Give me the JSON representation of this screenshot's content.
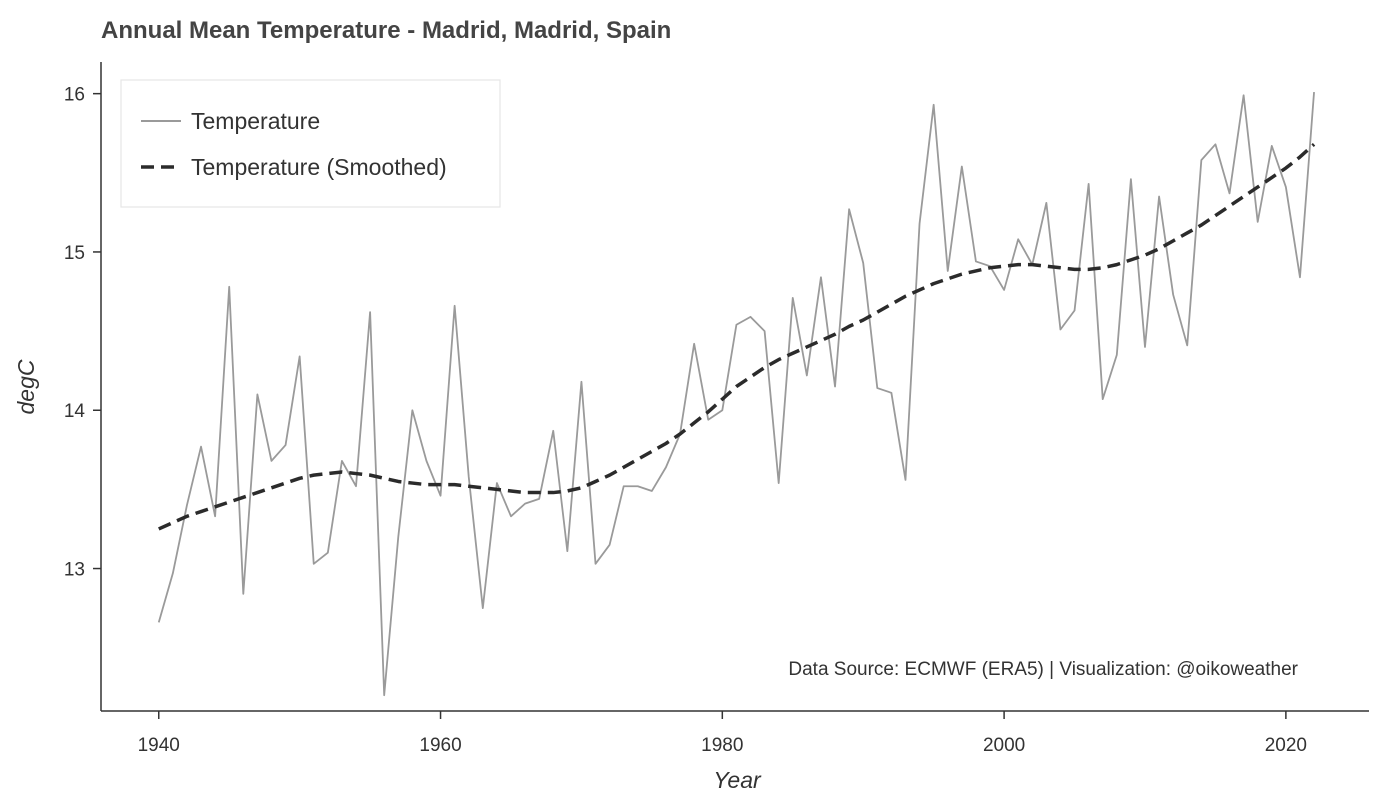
{
  "chart_data": {
    "type": "line",
    "title": "Annual Mean Temperature - Madrid, Madrid, Spain",
    "xlabel": "Year",
    "ylabel": "degC",
    "xlim": [
      1935.9,
      2025.9
    ],
    "ylim": [
      12.1,
      16.2
    ],
    "x_ticks": [
      1940,
      1960,
      1980,
      2000,
      2020
    ],
    "y_ticks": [
      13,
      14,
      15,
      16
    ],
    "x_tick_labels": [
      "1940",
      "1960",
      "1980",
      "2000",
      "2020"
    ],
    "y_tick_labels": [
      "13",
      "14",
      "15",
      "16"
    ],
    "legend_position": "top-left",
    "annotation": "Data Source: ECMWF (ERA5) | Visualization: @oikoweather",
    "colors": {
      "raw": "#9a9a9a",
      "smoothed": "#2b2b2b",
      "axis": "#333333",
      "legend_border": "#e6e6e6"
    },
    "x": [
      1940,
      1941,
      1942,
      1943,
      1944,
      1945,
      1946,
      1947,
      1948,
      1949,
      1950,
      1951,
      1952,
      1953,
      1954,
      1955,
      1956,
      1957,
      1958,
      1959,
      1960,
      1961,
      1962,
      1963,
      1964,
      1965,
      1966,
      1967,
      1968,
      1969,
      1970,
      1971,
      1972,
      1973,
      1974,
      1975,
      1976,
      1977,
      1978,
      1979,
      1980,
      1981,
      1982,
      1983,
      1984,
      1985,
      1986,
      1987,
      1988,
      1989,
      1990,
      1991,
      1992,
      1993,
      1994,
      1995,
      1996,
      1997,
      1998,
      1999,
      2000,
      2001,
      2002,
      2003,
      2004,
      2005,
      2006,
      2007,
      2008,
      2009,
      2010,
      2011,
      2012,
      2013,
      2014,
      2015,
      2016,
      2017,
      2018,
      2019,
      2020,
      2021,
      2022
    ],
    "series": [
      {
        "name": "Temperature",
        "style": "solid",
        "values": [
          12.66,
          12.97,
          13.4,
          13.77,
          13.33,
          14.78,
          12.84,
          14.1,
          13.68,
          13.78,
          14.34,
          13.03,
          13.1,
          13.68,
          13.52,
          14.62,
          12.2,
          13.2,
          14.0,
          13.68,
          13.46,
          14.66,
          13.58,
          12.75,
          13.54,
          13.33,
          13.41,
          13.44,
          13.87,
          13.11,
          14.18,
          13.03,
          13.15,
          13.52,
          13.52,
          13.49,
          13.64,
          13.85,
          14.42,
          13.94,
          14.0,
          14.54,
          14.59,
          14.5,
          13.54,
          14.71,
          14.22,
          14.84,
          14.15,
          15.27,
          14.93,
          14.14,
          14.11,
          13.56,
          15.18,
          15.93,
          14.88,
          15.54,
          14.94,
          14.91,
          14.76,
          15.08,
          14.92,
          15.31,
          14.51,
          14.63,
          15.43,
          14.07,
          14.35,
          15.46,
          14.4,
          15.35,
          14.73,
          14.41,
          15.58,
          15.68,
          15.37,
          15.99,
          15.19,
          15.67,
          15.41,
          14.84,
          16.01
        ]
      },
      {
        "name": "Temperature (Smoothed)",
        "style": "dashed",
        "values": [
          13.25,
          13.29,
          13.33,
          13.36,
          13.39,
          13.42,
          13.45,
          13.48,
          13.51,
          13.54,
          13.57,
          13.59,
          13.6,
          13.61,
          13.6,
          13.59,
          13.57,
          13.55,
          13.54,
          13.53,
          13.53,
          13.53,
          13.52,
          13.51,
          13.5,
          13.49,
          13.48,
          13.48,
          13.48,
          13.49,
          13.51,
          13.55,
          13.59,
          13.64,
          13.69,
          13.74,
          13.79,
          13.85,
          13.92,
          13.99,
          14.07,
          14.15,
          14.21,
          14.27,
          14.32,
          14.36,
          14.4,
          14.44,
          14.48,
          14.53,
          14.57,
          14.62,
          14.67,
          14.72,
          14.76,
          14.8,
          14.83,
          14.86,
          14.88,
          14.9,
          14.91,
          14.92,
          14.92,
          14.91,
          14.9,
          14.89,
          14.89,
          14.9,
          14.92,
          14.95,
          14.98,
          15.02,
          15.07,
          15.12,
          15.17,
          15.23,
          15.29,
          15.35,
          15.41,
          15.47,
          15.53,
          15.6,
          15.68
        ]
      }
    ]
  }
}
